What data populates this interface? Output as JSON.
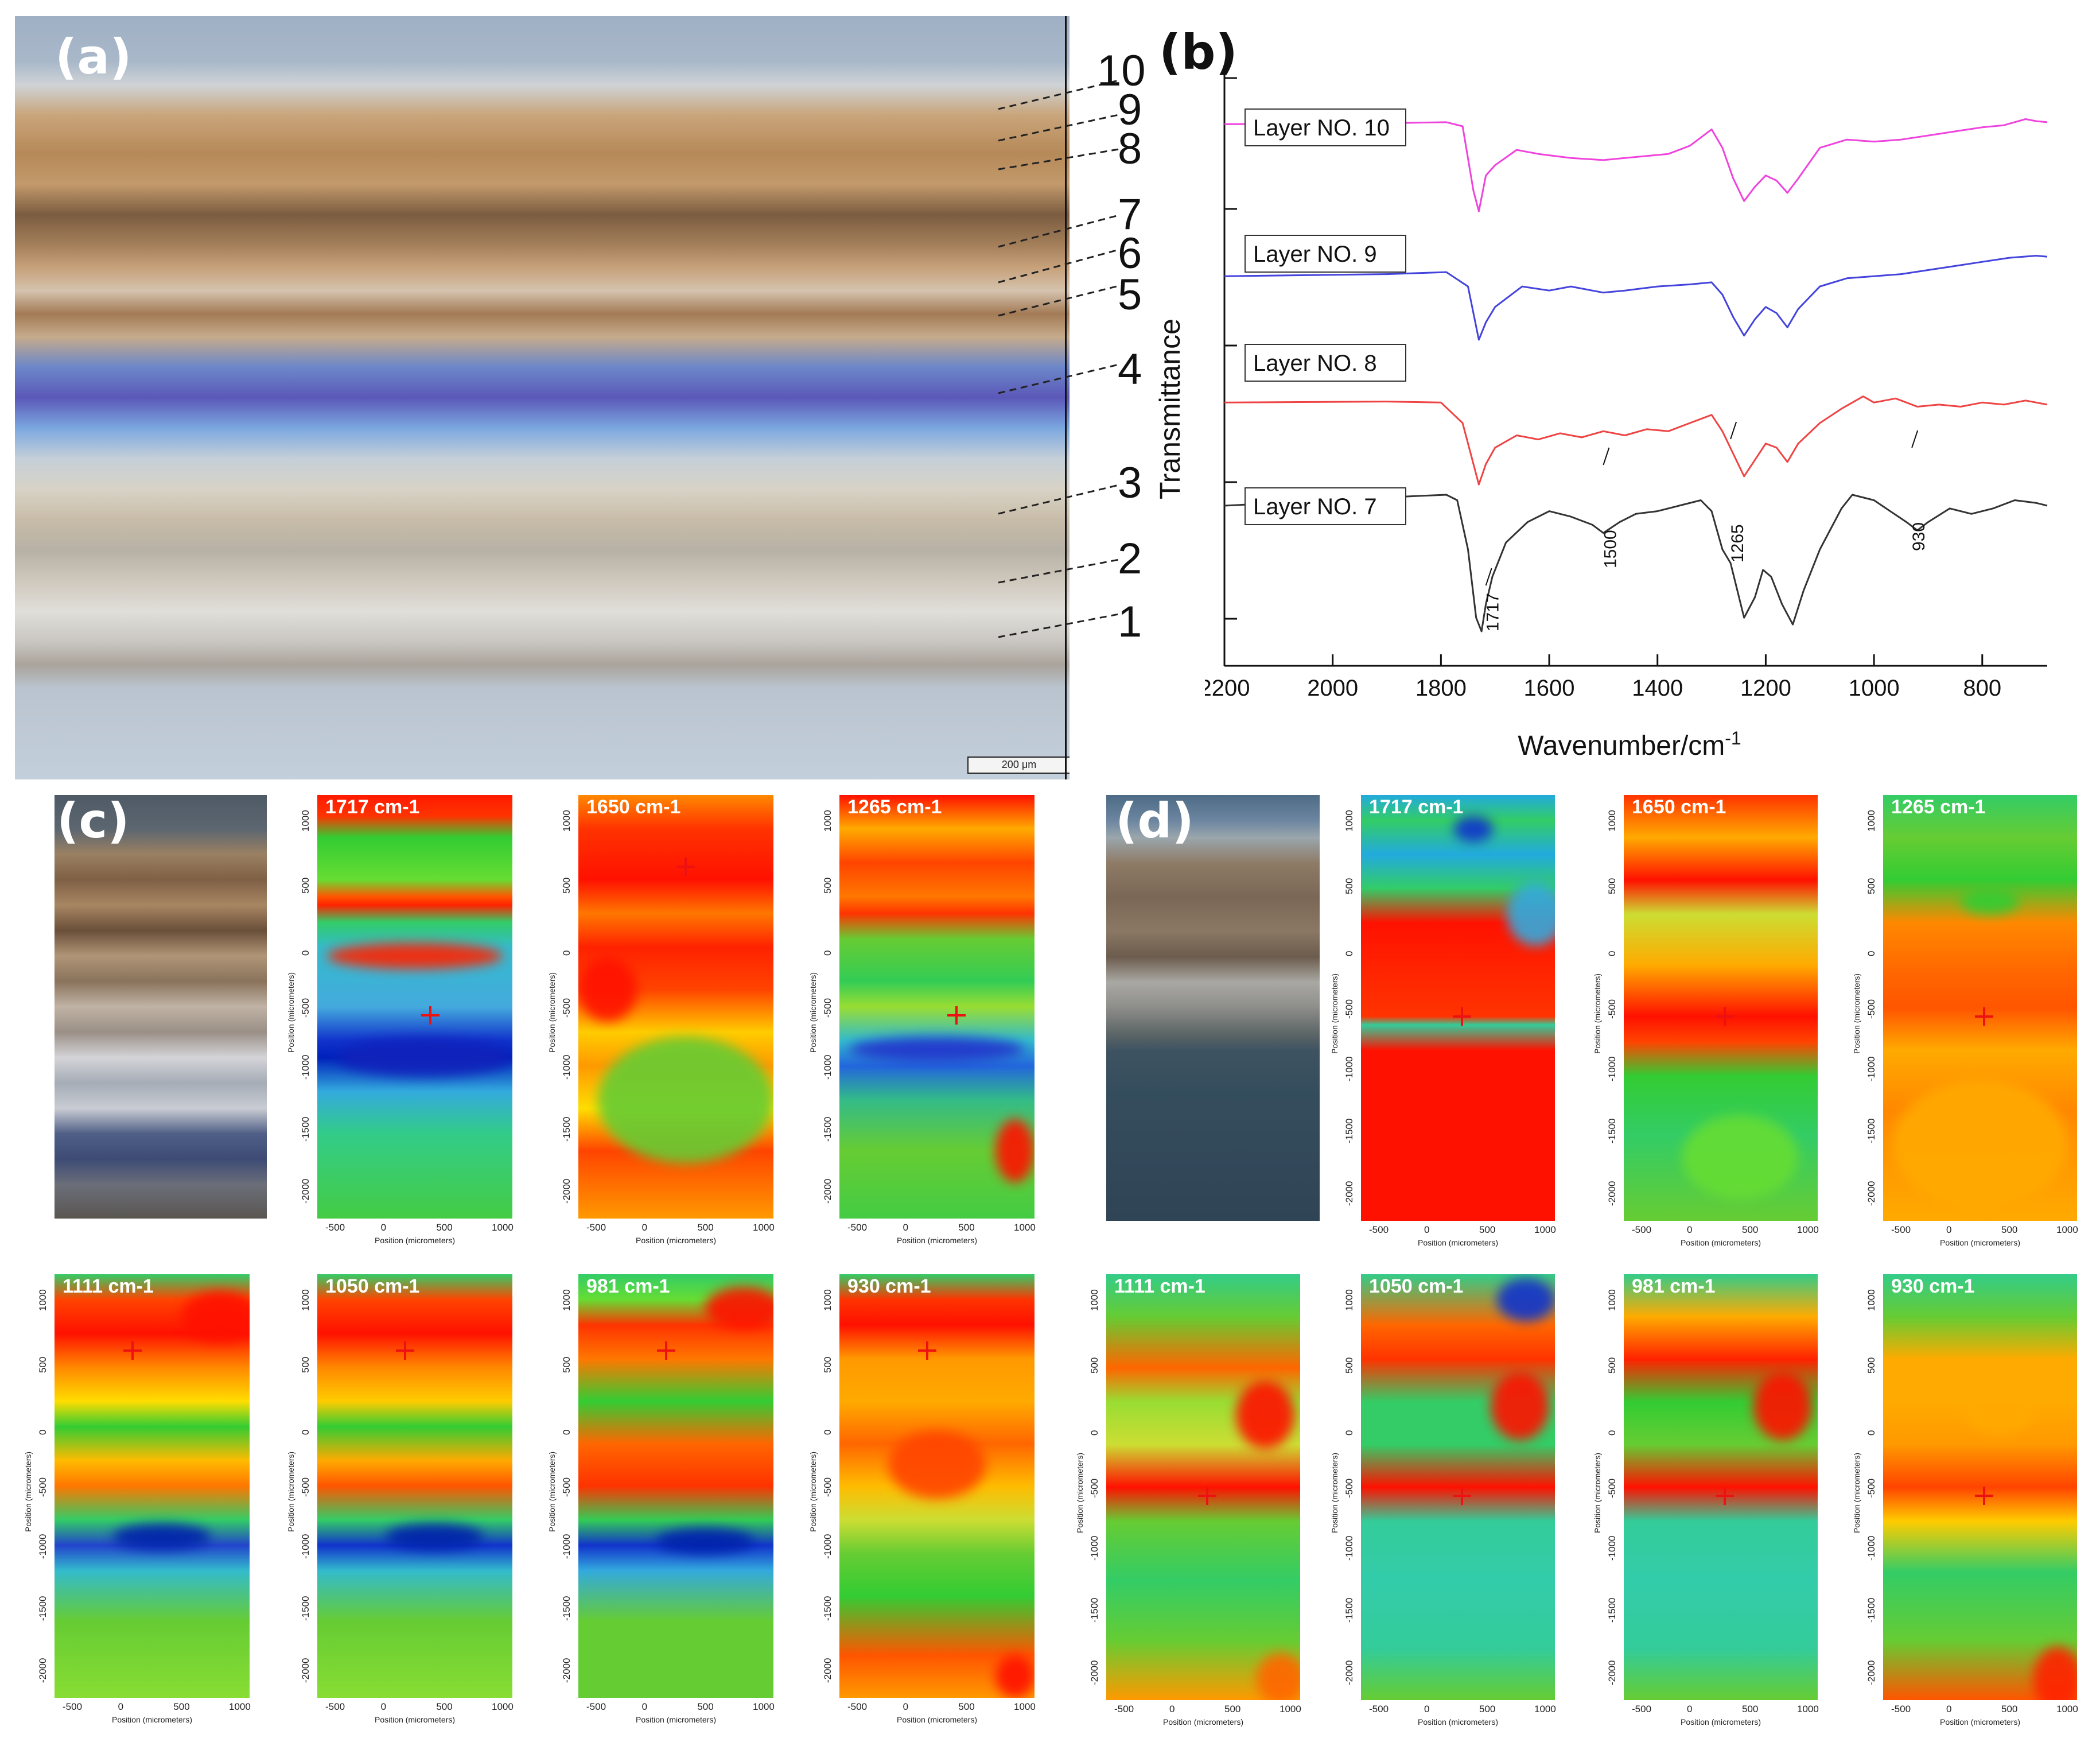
{
  "panel_a": {
    "letter": "(a)",
    "layer_labels": [
      "10",
      "9",
      "8",
      "7",
      "6",
      "5",
      "4",
      "3",
      "2",
      "1"
    ],
    "scalebar": "200 μm"
  },
  "panel_b": {
    "letter": "(b)",
    "ylabel": "Transmittance",
    "xlabel_main": "Wavenumber/cm",
    "xlabel_sup": "-1",
    "xticks": [
      "2200",
      "2000",
      "1800",
      "1600",
      "1400",
      "1200",
      "1000",
      "800"
    ],
    "legend": [
      "Layer NO. 10",
      "Layer NO. 9",
      "Layer NO. 8",
      "Layer NO. 7"
    ],
    "annotations": [
      "1717",
      "1500",
      "1265",
      "930"
    ],
    "colors": {
      "layer10": "#ee44dd",
      "layer9": "#4444dd",
      "layer8": "#ee4444",
      "layer7": "#333333"
    }
  },
  "chart_data": {
    "type": "line",
    "xlabel": "Wavenumber/cm-1",
    "ylabel": "Transmittance",
    "xlim": [
      2200,
      680
    ],
    "xticks": [
      2200,
      2000,
      1800,
      1600,
      1400,
      1200,
      1000,
      800
    ],
    "series": [
      {
        "name": "Layer NO. 10",
        "color": "#ee44dd",
        "offset": 3,
        "scale": 0.75,
        "points": [
          [
            2200,
            0.95
          ],
          [
            1900,
            0.96
          ],
          [
            1790,
            0.97
          ],
          [
            1760,
            0.93
          ],
          [
            1740,
            0.3
          ],
          [
            1730,
            0.1
          ],
          [
            1717,
            0.45
          ],
          [
            1700,
            0.55
          ],
          [
            1660,
            0.7
          ],
          [
            1620,
            0.66
          ],
          [
            1560,
            0.62
          ],
          [
            1500,
            0.6
          ],
          [
            1460,
            0.62
          ],
          [
            1380,
            0.66
          ],
          [
            1340,
            0.74
          ],
          [
            1300,
            0.9
          ],
          [
            1280,
            0.72
          ],
          [
            1260,
            0.42
          ],
          [
            1240,
            0.2
          ],
          [
            1220,
            0.34
          ],
          [
            1200,
            0.45
          ],
          [
            1180,
            0.4
          ],
          [
            1160,
            0.28
          ],
          [
            1140,
            0.42
          ],
          [
            1100,
            0.72
          ],
          [
            1050,
            0.8
          ],
          [
            1000,
            0.78
          ],
          [
            950,
            0.8
          ],
          [
            900,
            0.84
          ],
          [
            850,
            0.88
          ],
          [
            800,
            0.92
          ],
          [
            760,
            0.94
          ],
          [
            720,
            1.0
          ],
          [
            700,
            0.98
          ],
          [
            680,
            0.97
          ]
        ]
      },
      {
        "name": "Layer NO. 9",
        "color": "#4444dd",
        "offset": 2,
        "scale": 0.75,
        "points": [
          [
            2200,
            0.8
          ],
          [
            1900,
            0.82
          ],
          [
            1790,
            0.84
          ],
          [
            1750,
            0.7
          ],
          [
            1730,
            0.18
          ],
          [
            1717,
            0.35
          ],
          [
            1700,
            0.5
          ],
          [
            1650,
            0.7
          ],
          [
            1600,
            0.66
          ],
          [
            1560,
            0.7
          ],
          [
            1500,
            0.64
          ],
          [
            1460,
            0.66
          ],
          [
            1400,
            0.7
          ],
          [
            1340,
            0.72
          ],
          [
            1300,
            0.74
          ],
          [
            1280,
            0.62
          ],
          [
            1260,
            0.4
          ],
          [
            1240,
            0.22
          ],
          [
            1220,
            0.38
          ],
          [
            1200,
            0.5
          ],
          [
            1180,
            0.44
          ],
          [
            1160,
            0.3
          ],
          [
            1140,
            0.48
          ],
          [
            1100,
            0.7
          ],
          [
            1050,
            0.78
          ],
          [
            1000,
            0.8
          ],
          [
            950,
            0.82
          ],
          [
            900,
            0.86
          ],
          [
            850,
            0.9
          ],
          [
            800,
            0.94
          ],
          [
            750,
            0.98
          ],
          [
            700,
            1.0
          ],
          [
            680,
            0.99
          ]
        ]
      },
      {
        "name": "Layer NO. 8",
        "color": "#ee4444",
        "offset": 1,
        "scale": 0.75,
        "points": [
          [
            2200,
            0.9
          ],
          [
            1900,
            0.91
          ],
          [
            1800,
            0.9
          ],
          [
            1760,
            0.7
          ],
          [
            1740,
            0.3
          ],
          [
            1730,
            0.1
          ],
          [
            1717,
            0.3
          ],
          [
            1700,
            0.46
          ],
          [
            1660,
            0.58
          ],
          [
            1620,
            0.54
          ],
          [
            1580,
            0.6
          ],
          [
            1540,
            0.56
          ],
          [
            1500,
            0.62
          ],
          [
            1460,
            0.58
          ],
          [
            1420,
            0.64
          ],
          [
            1380,
            0.62
          ],
          [
            1340,
            0.7
          ],
          [
            1300,
            0.78
          ],
          [
            1280,
            0.62
          ],
          [
            1260,
            0.4
          ],
          [
            1240,
            0.18
          ],
          [
            1220,
            0.34
          ],
          [
            1200,
            0.5
          ],
          [
            1180,
            0.46
          ],
          [
            1160,
            0.32
          ],
          [
            1140,
            0.5
          ],
          [
            1100,
            0.7
          ],
          [
            1060,
            0.84
          ],
          [
            1040,
            0.9
          ],
          [
            1020,
            0.96
          ],
          [
            1000,
            0.9
          ],
          [
            960,
            0.94
          ],
          [
            920,
            0.86
          ],
          [
            880,
            0.88
          ],
          [
            840,
            0.86
          ],
          [
            800,
            0.9
          ],
          [
            760,
            0.88
          ],
          [
            720,
            0.92
          ],
          [
            700,
            0.9
          ],
          [
            680,
            0.88
          ]
        ]
      },
      {
        "name": "Layer NO. 7",
        "color": "#333333",
        "offset": 0,
        "scale": 1.0,
        "points": [
          [
            2200,
            0.92
          ],
          [
            2000,
            0.96
          ],
          [
            1850,
            0.99
          ],
          [
            1790,
            1.0
          ],
          [
            1770,
            0.96
          ],
          [
            1750,
            0.6
          ],
          [
            1735,
            0.1
          ],
          [
            1725,
            0.0
          ],
          [
            1717,
            0.2
          ],
          [
            1705,
            0.4
          ],
          [
            1680,
            0.65
          ],
          [
            1640,
            0.8
          ],
          [
            1600,
            0.88
          ],
          [
            1560,
            0.84
          ],
          [
            1520,
            0.78
          ],
          [
            1500,
            0.72
          ],
          [
            1470,
            0.8
          ],
          [
            1440,
            0.86
          ],
          [
            1400,
            0.88
          ],
          [
            1360,
            0.92
          ],
          [
            1320,
            0.96
          ],
          [
            1300,
            0.88
          ],
          [
            1280,
            0.6
          ],
          [
            1265,
            0.5
          ],
          [
            1240,
            0.1
          ],
          [
            1220,
            0.25
          ],
          [
            1205,
            0.45
          ],
          [
            1190,
            0.4
          ],
          [
            1170,
            0.2
          ],
          [
            1150,
            0.05
          ],
          [
            1130,
            0.3
          ],
          [
            1100,
            0.6
          ],
          [
            1060,
            0.9
          ],
          [
            1040,
            1.0
          ],
          [
            1000,
            0.96
          ],
          [
            970,
            0.88
          ],
          [
            940,
            0.8
          ],
          [
            920,
            0.74
          ],
          [
            900,
            0.8
          ],
          [
            860,
            0.9
          ],
          [
            820,
            0.86
          ],
          [
            780,
            0.9
          ],
          [
            740,
            0.96
          ],
          [
            700,
            0.94
          ],
          [
            680,
            0.92
          ]
        ]
      }
    ],
    "annotations": [
      {
        "text": "1717",
        "x": 1717
      },
      {
        "text": "1500",
        "x": 1500
      },
      {
        "text": "1265",
        "x": 1265
      },
      {
        "text": "930",
        "x": 930
      }
    ]
  },
  "panel_c": {
    "letter": "(c)",
    "maps": [
      "1717 cm-1",
      "1650 cm-1",
      "1265 cm-1",
      "1111 cm-1",
      "1050 cm-1",
      "981 cm-1",
      "930 cm-1"
    ]
  },
  "panel_d": {
    "letter": "(d)",
    "maps": [
      "1717 cm-1",
      "1650 cm-1",
      "1265 cm-1",
      "1111 cm-1",
      "1050 cm-1",
      "981 cm-1",
      "930 cm-1"
    ]
  },
  "map_axes": {
    "xticks": [
      "-500",
      "0",
      "500",
      "1000"
    ],
    "yticks": [
      "1000",
      "500",
      "0",
      "-500",
      "-1000",
      "-1500",
      "-2000"
    ],
    "xlabel": "Position (micrometers)",
    "ylabel": "Position (micrometers)"
  }
}
